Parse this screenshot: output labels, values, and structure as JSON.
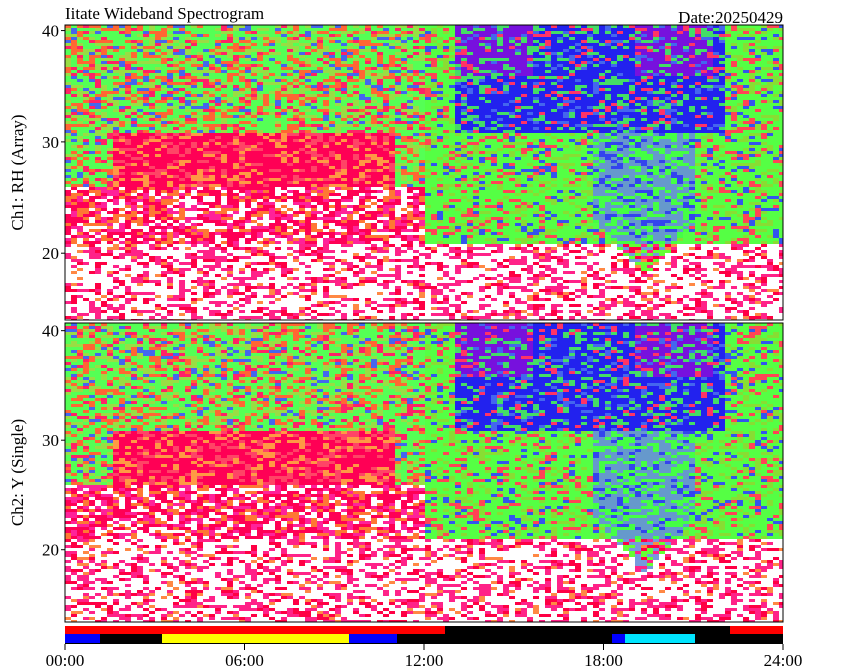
{
  "header": {
    "title": "Iitate Wideband Spectrogram",
    "date": "Date:20250429"
  },
  "chart_data": [
    {
      "type": "heatmap",
      "y_label": "Ch1: RH (Array)",
      "xlim": [
        0,
        24
      ],
      "ylim": [
        14,
        40.5
      ],
      "yticks": [
        20,
        30,
        40
      ]
    },
    {
      "type": "heatmap",
      "y_label": "Ch2: Y (Single)",
      "xlim": [
        0,
        24
      ],
      "ylim": [
        13.4,
        40.7
      ],
      "yticks": [
        20,
        30,
        40
      ],
      "xticks": [
        {
          "value": 0,
          "label": "00:00"
        },
        {
          "value": 6,
          "label": "06:00"
        },
        {
          "value": 12,
          "label": "12:00"
        },
        {
          "value": 18,
          "label": "18:00"
        },
        {
          "value": 24,
          "label": "24:00"
        }
      ]
    }
  ]
}
